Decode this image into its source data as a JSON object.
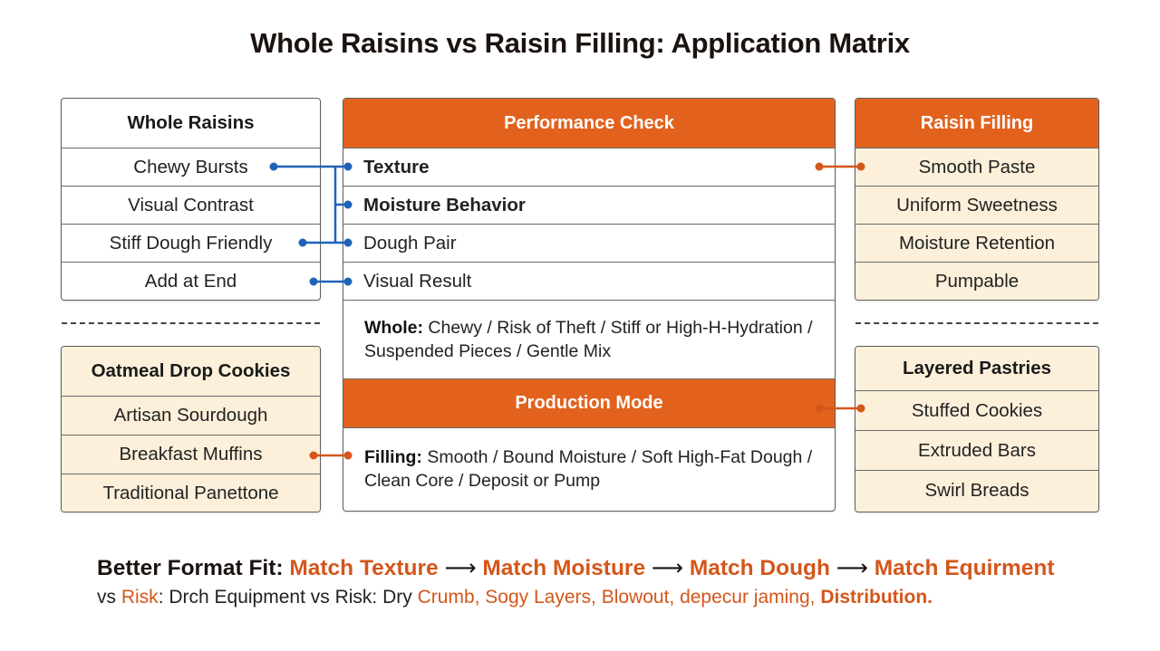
{
  "title": "Whole Raisins vs Raisin Filling: Application Matrix",
  "left_top": {
    "header": "Whole Raisins",
    "items": [
      "Chewy Bursts",
      "Visual Contrast",
      "Stiff Dough Friendly",
      "Add at End"
    ]
  },
  "left_bottom": {
    "header": "Oatmeal Drop Cookies",
    "items": [
      "Artisan Sourdough",
      "Breakfast Muffins",
      "Traditional Panettone"
    ]
  },
  "center": {
    "header": "Performance Check",
    "items": [
      "Texture",
      "Moisture Behavior",
      "Dough Pair",
      "Visual Result"
    ],
    "whole_label": "Whole:",
    "whole_text": "Chewy / Risk of Theft / Stiff or High-H-Hydration / Suspended Pieces / Gentle Mix",
    "production_header": "Production Mode",
    "filling_label": "Filling:",
    "filling_text": "Smooth / Bound Moisture / Soft High-Fat Dough / Clean Core / Deposit or Pump"
  },
  "right_top": {
    "header": "Raisin Filling",
    "items": [
      "Smooth Paste",
      "Uniform Sweetness",
      "Moisture Retention",
      "Pumpable"
    ]
  },
  "right_bottom": {
    "header": "Layered Pastries",
    "items": [
      "Stuffed Cookies",
      "Extruded Bars",
      "Swirl Breads"
    ]
  },
  "footer": {
    "lead": "Better Format Fit:",
    "steps": [
      "Match Texture",
      "Match Moisture",
      "Match Dough",
      "Match Equirment"
    ],
    "arrow": "⟶",
    "line2_part1": "vs",
    "line2_part2": "Risk",
    "line2_part3": ": Drch Equipment vs Risk: Dry",
    "line2_part4": "Crumb, Sogy Layers, Blowout, depecur jaming,",
    "line2_part5": "Distribution."
  },
  "colors": {
    "orange": "#e2621d",
    "cream": "#fdf0da",
    "blue": "#1f63b8"
  }
}
